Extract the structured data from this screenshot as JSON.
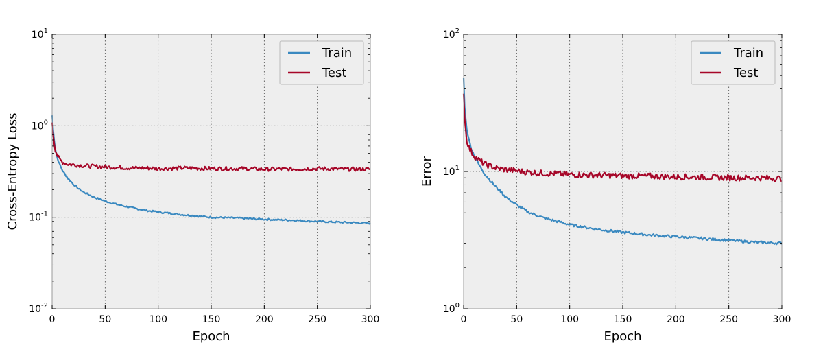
{
  "chart_data": [
    {
      "type": "line",
      "title": "",
      "xlabel": "Epoch",
      "ylabel": "Cross-Entropy Loss",
      "xlim": [
        0,
        300
      ],
      "ylim": [
        0.01,
        10
      ],
      "yscale": "log",
      "x_ticks": [
        "0",
        "50",
        "100",
        "150",
        "200",
        "250",
        "300"
      ],
      "x_tick_values": [
        0,
        50,
        100,
        150,
        200,
        250,
        300
      ],
      "y_ticks": [
        {
          "value": 10,
          "base": "10",
          "exp": "1"
        },
        {
          "value": 1,
          "base": "10",
          "exp": "0"
        },
        {
          "value": 0.1,
          "base": "10",
          "exp": "-1"
        },
        {
          "value": 0.01,
          "base": "10",
          "exp": "-2"
        }
      ],
      "grid": true,
      "legend_position": "top-right",
      "x": [
        0,
        1,
        2,
        3,
        5,
        7,
        10,
        15,
        20,
        25,
        30,
        40,
        50,
        60,
        75,
        90,
        100,
        125,
        150,
        175,
        200,
        225,
        250,
        275,
        300
      ],
      "series": [
        {
          "name": "Train",
          "color": "#3a89c0",
          "values": [
            1.3,
            0.9,
            0.7,
            0.56,
            0.44,
            0.38,
            0.32,
            0.265,
            0.23,
            0.205,
            0.187,
            0.165,
            0.15,
            0.139,
            0.127,
            0.118,
            0.114,
            0.106,
            0.1,
            0.098,
            0.095,
            0.093,
            0.09,
            0.088,
            0.086
          ]
        },
        {
          "name": "Test",
          "color": "#a60628",
          "values": [
            1.1,
            0.82,
            0.65,
            0.55,
            0.47,
            0.43,
            0.4,
            0.38,
            0.375,
            0.37,
            0.365,
            0.36,
            0.355,
            0.35,
            0.345,
            0.345,
            0.34,
            0.345,
            0.34,
            0.34,
            0.335,
            0.335,
            0.34,
            0.335,
            0.335
          ]
        }
      ]
    },
    {
      "type": "line",
      "title": "",
      "xlabel": "Epoch",
      "ylabel": "Error",
      "xlim": [
        0,
        300
      ],
      "ylim": [
        1,
        100
      ],
      "yscale": "log",
      "x_ticks": [
        "0",
        "50",
        "100",
        "150",
        "200",
        "250",
        "300"
      ],
      "x_tick_values": [
        0,
        50,
        100,
        150,
        200,
        250,
        300
      ],
      "y_ticks": [
        {
          "value": 100,
          "base": "10",
          "exp": "2"
        },
        {
          "value": 10,
          "base": "10",
          "exp": "1"
        },
        {
          "value": 1,
          "base": "10",
          "exp": "0"
        }
      ],
      "grid": true,
      "legend_position": "top-right",
      "x": [
        0,
        1,
        2,
        3,
        5,
        7,
        10,
        15,
        20,
        25,
        30,
        40,
        50,
        60,
        75,
        90,
        100,
        125,
        150,
        175,
        200,
        225,
        250,
        275,
        300
      ],
      "series": [
        {
          "name": "Train",
          "color": "#3a89c0",
          "values": [
            48,
            30,
            24,
            20.5,
            17,
            15,
            13,
            11,
            9.6,
            8.6,
            7.8,
            6.5,
            5.7,
            5.1,
            4.6,
            4.3,
            4.1,
            3.8,
            3.6,
            3.45,
            3.35,
            3.25,
            3.15,
            3.05,
            3.0
          ]
        },
        {
          "name": "Test",
          "color": "#a60628",
          "values": [
            37,
            25,
            20,
            17,
            15,
            14,
            13,
            12,
            11.3,
            11,
            10.6,
            10.3,
            10.1,
            9.9,
            9.7,
            9.6,
            9.5,
            9.4,
            9.3,
            9.25,
            9.15,
            9.1,
            9.0,
            9.0,
            8.9
          ]
        }
      ]
    }
  ]
}
